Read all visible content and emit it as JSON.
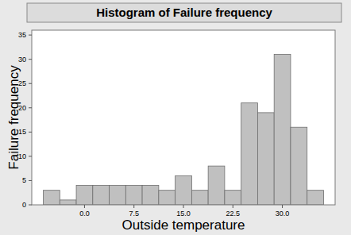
{
  "chart_data": {
    "type": "histogram",
    "title": "Histogram of Failure frequency",
    "x_label": "Outside temperature",
    "y_label": "Failure frequency",
    "bins": [
      -6.25,
      -3.75,
      -1.25,
      1.25,
      3.75,
      6.25,
      8.75,
      11.25,
      13.75,
      16.25,
      18.75,
      21.25,
      23.75,
      26.25,
      28.75,
      31.25,
      33.75,
      36.25
    ],
    "values": [
      3,
      1,
      4,
      4,
      4,
      4,
      4,
      3,
      6,
      3,
      8,
      3,
      21,
      19,
      31,
      16,
      3
    ],
    "color": "#c0c0c0",
    "xlim": [
      -8,
      38
    ],
    "xticks": [
      {
        "value": 0,
        "label": "0.0"
      },
      {
        "value": 7.5,
        "label": "7.5"
      },
      {
        "value": 15,
        "label": "15.0"
      },
      {
        "value": 22.5,
        "label": "22.5"
      },
      {
        "value": 30,
        "label": "30.0"
      }
    ],
    "ylim": [
      0,
      36
    ],
    "yticks": [
      0,
      5,
      10,
      15,
      20,
      25,
      30,
      35
    ],
    "grid": false
  }
}
